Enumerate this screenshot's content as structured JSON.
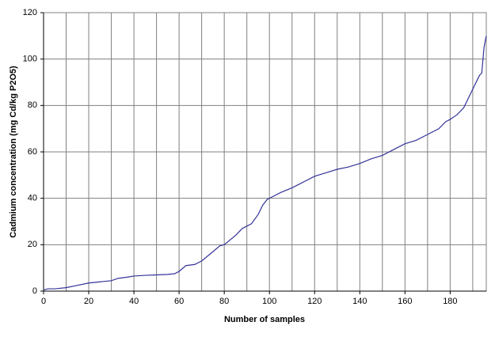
{
  "chart_data": {
    "type": "line",
    "x_label": "Number of samples",
    "y_label": "Cadmium concentration (mg Cd/kg P2O5)",
    "x": [
      0,
      2,
      5,
      10,
      15,
      20,
      25,
      30,
      33,
      37,
      40,
      45,
      50,
      55,
      58,
      60,
      63,
      67,
      70,
      75,
      78,
      80,
      85,
      88,
      92,
      95,
      97,
      99,
      102,
      105,
      110,
      115,
      120,
      125,
      130,
      135,
      140,
      145,
      150,
      155,
      160,
      165,
      170,
      175,
      178,
      180,
      183,
      186,
      188,
      190,
      192,
      193,
      194,
      195,
      196
    ],
    "series": [
      {
        "color": "#333399",
        "values": [
          0.5,
          1,
          1,
          1.5,
          2.5,
          3.5,
          4,
          4.5,
          5.5,
          6,
          6.5,
          6.8,
          7,
          7.2,
          7.5,
          8.5,
          11,
          11.5,
          13,
          17,
          19.5,
          20,
          24,
          27,
          29,
          33,
          37,
          39.5,
          41,
          42.5,
          44.5,
          47,
          49.5,
          51,
          52.5,
          53.5,
          55,
          57,
          58.5,
          61,
          63.5,
          65,
          67.5,
          70,
          73,
          74,
          76,
          79,
          83,
          87,
          91,
          93,
          94,
          105,
          110
        ]
      }
    ],
    "xlim": [
      0,
      196
    ],
    "ylim": [
      0,
      120
    ],
    "xticks": [
      0,
      20,
      40,
      60,
      80,
      100,
      120,
      140,
      160,
      180
    ],
    "xgrid": [
      0,
      10,
      20,
      30,
      40,
      50,
      60,
      70,
      80,
      90,
      100,
      110,
      120,
      130,
      140,
      150,
      160,
      170,
      180,
      190
    ],
    "yticks": [
      0,
      20,
      40,
      60,
      80,
      100,
      120
    ],
    "grid": true
  }
}
